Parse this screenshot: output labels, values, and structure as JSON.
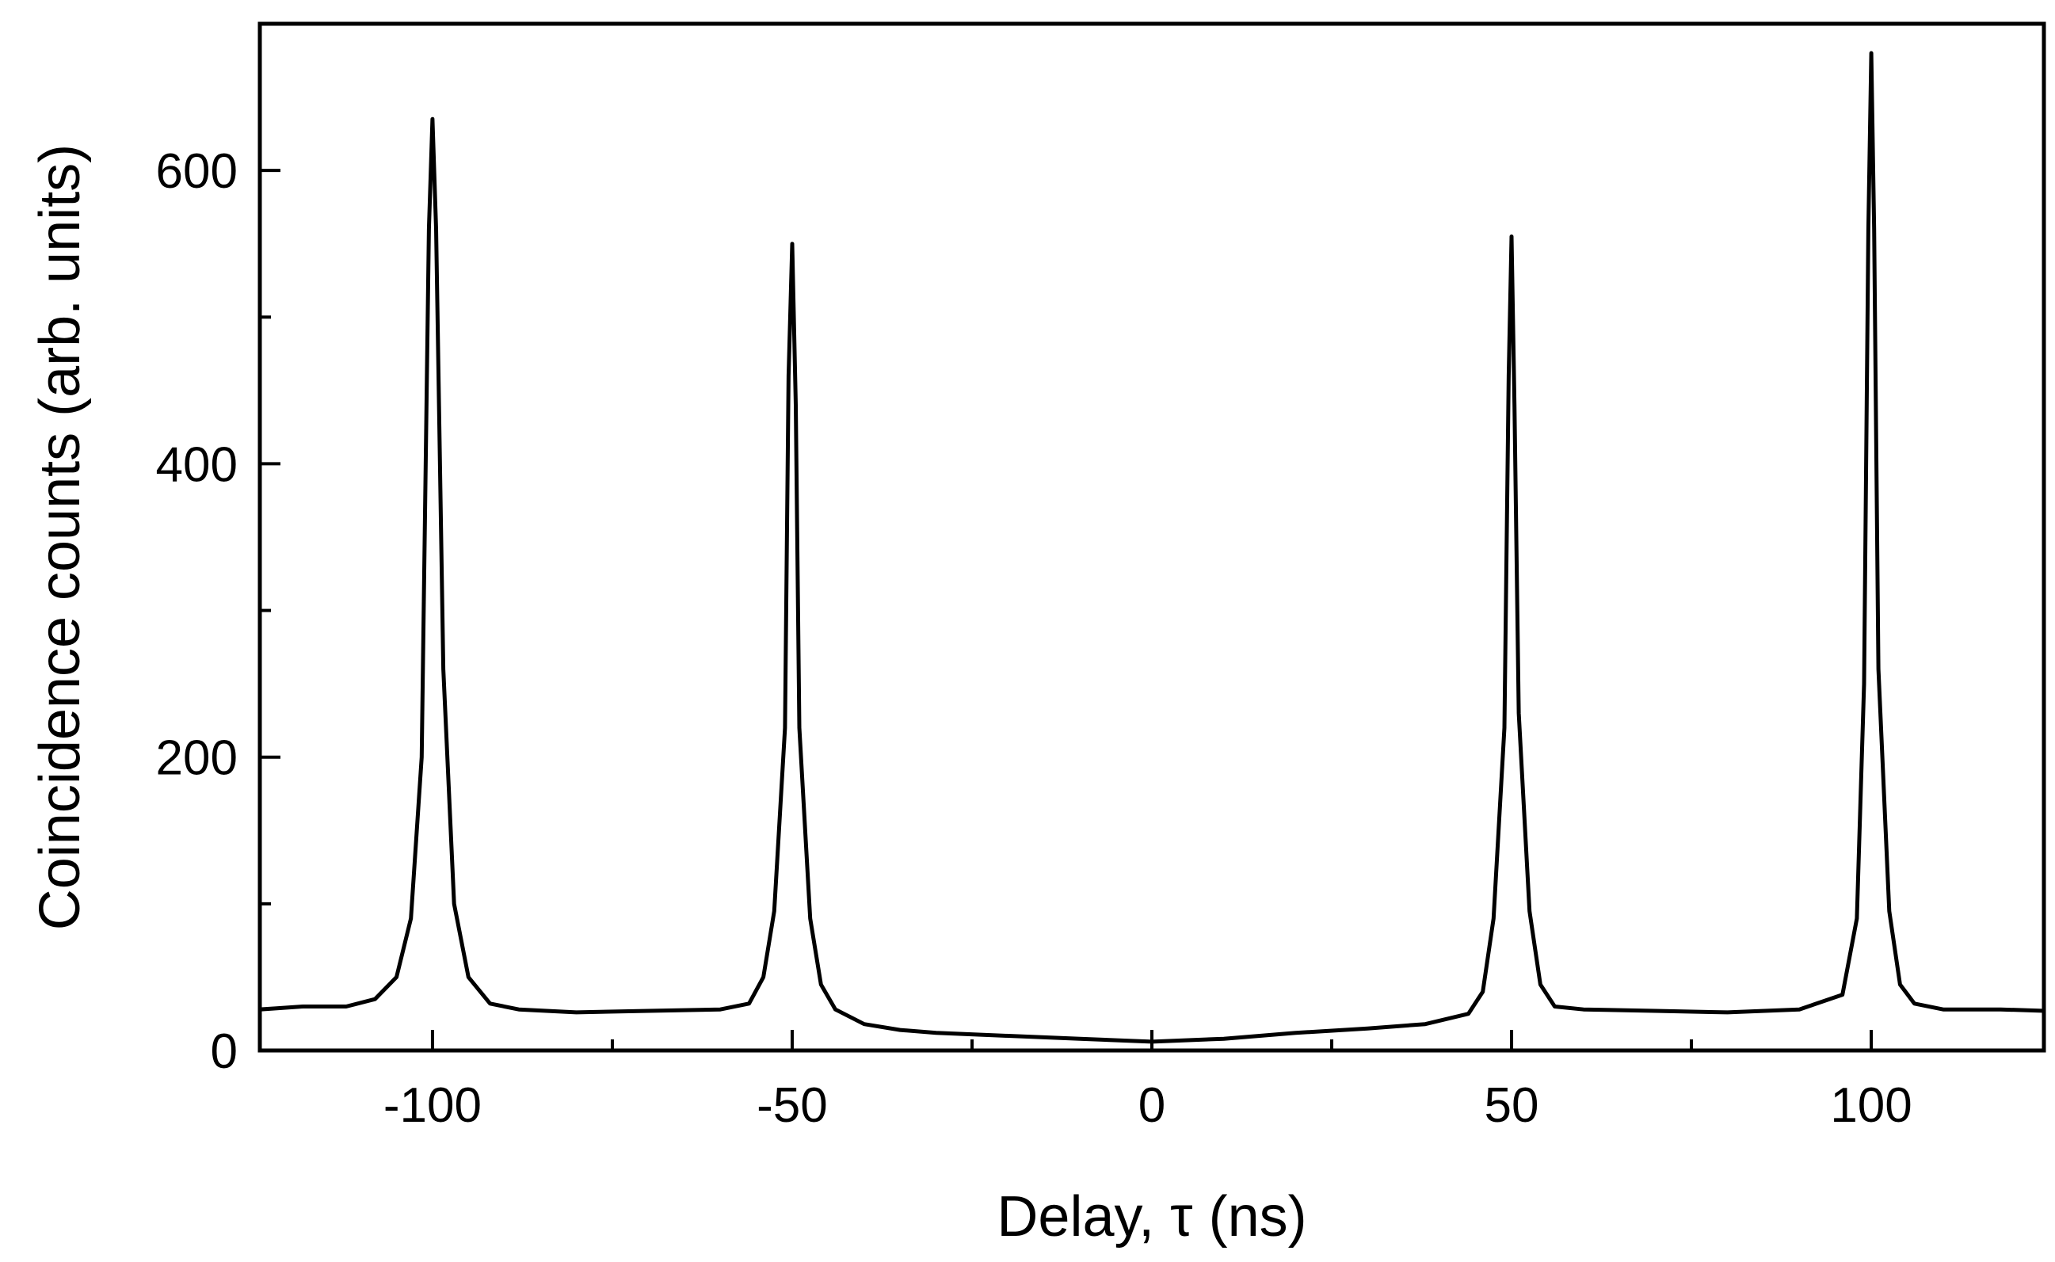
{
  "chart_data": {
    "type": "line",
    "title": "",
    "xlabel": "Delay, τ (ns)",
    "ylabel": "Coincidence counts (arb. units)",
    "xlim": [
      -124,
      124
    ],
    "ylim": [
      0,
      700
    ],
    "x_ticks": [
      -100,
      -50,
      0,
      50,
      100
    ],
    "x_tick_labels": [
      "-100",
      "-50",
      "0",
      "50",
      "100"
    ],
    "x_minor_ticks": [
      -75,
      -25,
      25,
      75
    ],
    "y_ticks": [
      0,
      200,
      400,
      600
    ],
    "y_tick_labels": [
      "0",
      "200",
      "400",
      "600"
    ],
    "y_minor_ticks": [
      100,
      300,
      500
    ],
    "grid": false,
    "legend": "none",
    "line_color": "#000000",
    "series": [
      {
        "x": [
          -124,
          -118,
          -112,
          -108,
          -105,
          -103,
          -101.5,
          -100.5,
          -100,
          -99.5,
          -98.5,
          -97,
          -95,
          -92,
          -88,
          -80,
          -70,
          -60,
          -56,
          -54,
          -52.5,
          -51,
          -50.5,
          -50,
          -49.5,
          -49,
          -47.5,
          -46,
          -44,
          -40,
          -35,
          -30,
          -20,
          -10,
          0,
          10,
          20,
          30,
          38,
          44,
          46,
          47.5,
          49,
          49.6,
          50,
          50.4,
          51,
          52.5,
          54,
          56,
          60,
          70,
          80,
          90,
          96,
          98,
          99,
          99.6,
          100,
          100.4,
          101,
          102.5,
          104,
          106,
          110,
          118,
          124
        ],
        "y": [
          28,
          30,
          30,
          35,
          50,
          90,
          200,
          560,
          635,
          560,
          260,
          100,
          50,
          32,
          28,
          26,
          27,
          28,
          32,
          50,
          95,
          220,
          460,
          550,
          440,
          220,
          90,
          45,
          28,
          18,
          14,
          12,
          10,
          8,
          6,
          8,
          12,
          15,
          18,
          25,
          40,
          90,
          220,
          460,
          555,
          440,
          230,
          95,
          45,
          30,
          28,
          27,
          26,
          28,
          38,
          90,
          250,
          560,
          680,
          560,
          260,
          95,
          45,
          32,
          28,
          28,
          27
        ]
      }
    ]
  }
}
